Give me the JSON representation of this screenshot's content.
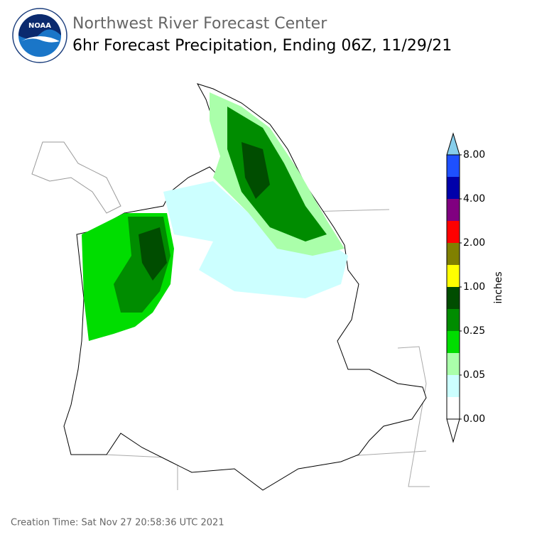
{
  "header": {
    "organization": "Northwest River Forecast Center",
    "title": "6hr Forecast Precipitation, Ending 06Z, 11/29/21",
    "logo": "NOAA"
  },
  "colorbar": {
    "label": "inches",
    "colors": [
      "#87ceeb",
      "#1e50ff",
      "#0000aa",
      "#800080",
      "#ff0000",
      "#808000",
      "#ffff00",
      "#004d00",
      "#008c00",
      "#00dd00",
      "#aaffaa",
      "#ccffff",
      "#ffffff",
      "#ffffff"
    ],
    "ticks": [
      {
        "value": 8,
        "label": "8.00"
      },
      {
        "value": 4,
        "label": "4.00"
      },
      {
        "value": 2,
        "label": "2.00"
      },
      {
        "value": 1,
        "label": "1.00"
      },
      {
        "value": 0.25,
        "label": "0.25"
      },
      {
        "value": 0.05,
        "label": "0.05"
      },
      {
        "value": 0,
        "label": "0.00"
      }
    ]
  },
  "footer": {
    "creation_time": "Creation Time: Sat Nov 27 20:58:36 UTC 2021"
  }
}
